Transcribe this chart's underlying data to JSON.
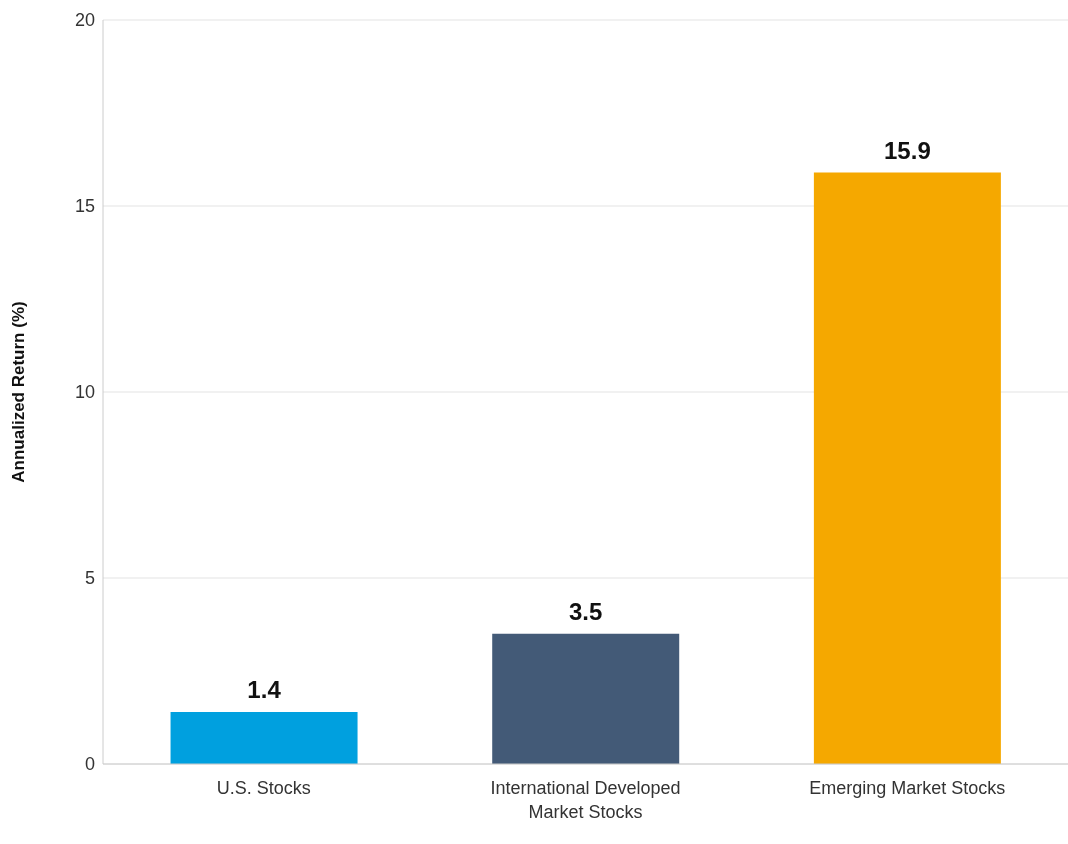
{
  "chart_data": {
    "type": "bar",
    "ylabel": "Annualized Return (%)",
    "categories": [
      "U.S. Stocks",
      "International Developed Market Stocks",
      "Emerging Market Stocks"
    ],
    "values": [
      1.4,
      3.5,
      15.9
    ],
    "colors": [
      "#00a0df",
      "#435a77",
      "#f5a800"
    ],
    "ylim": [
      0,
      20
    ],
    "yticks": [
      0,
      5,
      10,
      15,
      20
    ],
    "grid": "y",
    "data_labels": true
  }
}
